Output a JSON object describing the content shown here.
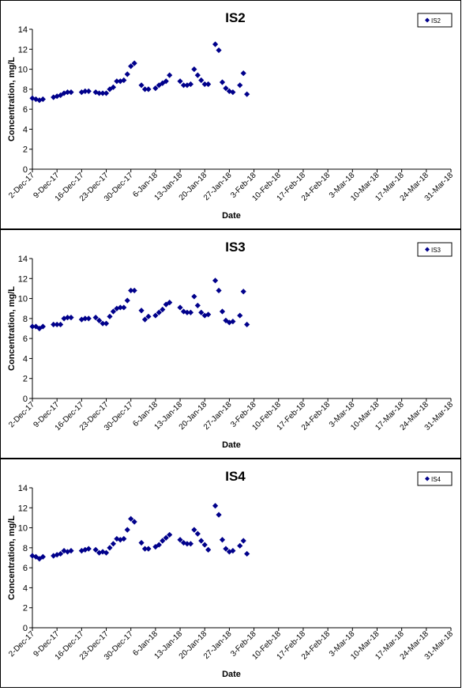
{
  "chart_data": [
    {
      "type": "scatter",
      "title": "IS2",
      "xlabel": "Date",
      "ylabel": "Concentration, mg/L",
      "ylim": [
        0,
        14
      ],
      "yticks": [
        "0",
        "2",
        "4",
        "6",
        "8",
        "10",
        "12",
        "14"
      ],
      "xlim": [
        "2017-12-02",
        "2018-03-31"
      ],
      "xtick_labels": [
        "2-Dec-17",
        "9-Dec-17",
        "16-Dec-17",
        "23-Dec-17",
        "30-Dec-17",
        "6-Jan-18",
        "13-Jan-18",
        "20-Jan-18",
        "27-Jan-18",
        "3-Feb-18",
        "10-Feb-18",
        "17-Feb-18",
        "24-Feb-18",
        "3-Mar-18",
        "10-Mar-18",
        "17-Mar-18",
        "24-Mar-18",
        "31-Mar-18"
      ],
      "grid": false,
      "legend_position": "top-right",
      "color": "#00008B",
      "marker": "diamond",
      "series": [
        {
          "name": "IS2",
          "points": [
            [
              "2017-12-02",
              7.1
            ],
            [
              "2017-12-03",
              7.0
            ],
            [
              "2017-12-04",
              6.9
            ],
            [
              "2017-12-05",
              7.0
            ],
            [
              "2017-12-08",
              7.2
            ],
            [
              "2017-12-09",
              7.3
            ],
            [
              "2017-12-10",
              7.4
            ],
            [
              "2017-12-11",
              7.6
            ],
            [
              "2017-12-12",
              7.7
            ],
            [
              "2017-12-13",
              7.7
            ],
            [
              "2017-12-16",
              7.7
            ],
            [
              "2017-12-17",
              7.8
            ],
            [
              "2017-12-18",
              7.8
            ],
            [
              "2017-12-20",
              7.7
            ],
            [
              "2017-12-21",
              7.6
            ],
            [
              "2017-12-22",
              7.6
            ],
            [
              "2017-12-23",
              7.6
            ],
            [
              "2017-12-24",
              8.0
            ],
            [
              "2017-12-25",
              8.2
            ],
            [
              "2017-12-26",
              8.8
            ],
            [
              "2017-12-27",
              8.8
            ],
            [
              "2017-12-28",
              8.9
            ],
            [
              "2017-12-29",
              9.5
            ],
            [
              "2017-12-30",
              10.3
            ],
            [
              "2017-12-31",
              10.6
            ],
            [
              "2018-01-02",
              8.4
            ],
            [
              "2018-01-03",
              8.0
            ],
            [
              "2018-01-04",
              8.0
            ],
            [
              "2018-01-06",
              8.1
            ],
            [
              "2018-01-07",
              8.4
            ],
            [
              "2018-01-08",
              8.6
            ],
            [
              "2018-01-09",
              8.8
            ],
            [
              "2018-01-10",
              9.4
            ],
            [
              "2018-01-13",
              8.8
            ],
            [
              "2018-01-14",
              8.4
            ],
            [
              "2018-01-15",
              8.4
            ],
            [
              "2018-01-16",
              8.5
            ],
            [
              "2018-01-17",
              10.0
            ],
            [
              "2018-01-18",
              9.4
            ],
            [
              "2018-01-19",
              8.9
            ],
            [
              "2018-01-20",
              8.5
            ],
            [
              "2018-01-21",
              8.5
            ],
            [
              "2018-01-23",
              12.5
            ],
            [
              "2018-01-24",
              11.9
            ],
            [
              "2018-01-25",
              8.7
            ],
            [
              "2018-01-26",
              8.1
            ],
            [
              "2018-01-27",
              7.8
            ],
            [
              "2018-01-28",
              7.7
            ],
            [
              "2018-01-30",
              8.4
            ],
            [
              "2018-01-31",
              9.6
            ],
            [
              "2018-02-01",
              7.5
            ]
          ]
        }
      ]
    },
    {
      "type": "scatter",
      "title": "IS3",
      "xlabel": "Date",
      "ylabel": "Concentration, mg/L",
      "ylim": [
        0,
        14
      ],
      "yticks": [
        "0",
        "2",
        "4",
        "6",
        "8",
        "10",
        "12",
        "14"
      ],
      "xlim": [
        "2017-12-02",
        "2018-03-31"
      ],
      "xtick_labels": [
        "2-Dec-17",
        "9-Dec-17",
        "16-Dec-17",
        "23-Dec-17",
        "30-Dec-17",
        "6-Jan-18",
        "13-Jan-18",
        "20-Jan-18",
        "27-Jan-18",
        "3-Feb-18",
        "10-Feb-18",
        "17-Feb-18",
        "24-Feb-18",
        "3-Mar-18",
        "10-Mar-18",
        "17-Mar-18",
        "24-Mar-18",
        "31-Mar-18"
      ],
      "grid": false,
      "legend_position": "top-right",
      "color": "#00008B",
      "marker": "diamond",
      "series": [
        {
          "name": "IS3",
          "points": [
            [
              "2017-12-02",
              7.2
            ],
            [
              "2017-12-03",
              7.2
            ],
            [
              "2017-12-04",
              7.0
            ],
            [
              "2017-12-05",
              7.2
            ],
            [
              "2017-12-08",
              7.4
            ],
            [
              "2017-12-09",
              7.4
            ],
            [
              "2017-12-10",
              7.4
            ],
            [
              "2017-12-11",
              8.0
            ],
            [
              "2017-12-12",
              8.1
            ],
            [
              "2017-12-13",
              8.1
            ],
            [
              "2017-12-16",
              7.9
            ],
            [
              "2017-12-17",
              8.0
            ],
            [
              "2017-12-18",
              8.0
            ],
            [
              "2017-12-20",
              8.1
            ],
            [
              "2017-12-21",
              7.8
            ],
            [
              "2017-12-22",
              7.5
            ],
            [
              "2017-12-23",
              7.5
            ],
            [
              "2017-12-24",
              8.2
            ],
            [
              "2017-12-25",
              8.7
            ],
            [
              "2017-12-26",
              9.0
            ],
            [
              "2017-12-27",
              9.1
            ],
            [
              "2017-12-28",
              9.1
            ],
            [
              "2017-12-29",
              9.8
            ],
            [
              "2017-12-30",
              10.8
            ],
            [
              "2017-12-31",
              10.8
            ],
            [
              "2018-01-02",
              8.8
            ],
            [
              "2018-01-03",
              7.9
            ],
            [
              "2018-01-04",
              8.2
            ],
            [
              "2018-01-06",
              8.3
            ],
            [
              "2018-01-07",
              8.6
            ],
            [
              "2018-01-08",
              8.9
            ],
            [
              "2018-01-09",
              9.4
            ],
            [
              "2018-01-10",
              9.6
            ],
            [
              "2018-01-13",
              9.1
            ],
            [
              "2018-01-14",
              8.7
            ],
            [
              "2018-01-15",
              8.6
            ],
            [
              "2018-01-16",
              8.6
            ],
            [
              "2018-01-17",
              10.2
            ],
            [
              "2018-01-18",
              9.3
            ],
            [
              "2018-01-19",
              8.6
            ],
            [
              "2018-01-20",
              8.3
            ],
            [
              "2018-01-21",
              8.4
            ],
            [
              "2018-01-23",
              11.8
            ],
            [
              "2018-01-24",
              10.8
            ],
            [
              "2018-01-25",
              8.7
            ],
            [
              "2018-01-26",
              7.8
            ],
            [
              "2018-01-27",
              7.6
            ],
            [
              "2018-01-28",
              7.7
            ],
            [
              "2018-01-30",
              8.3
            ],
            [
              "2018-01-31",
              10.7
            ],
            [
              "2018-02-01",
              7.4
            ]
          ]
        }
      ]
    },
    {
      "type": "scatter",
      "title": "IS4",
      "xlabel": "Date",
      "ylabel": "Concentration, mg/L",
      "ylim": [
        0,
        14
      ],
      "yticks": [
        "0",
        "2",
        "4",
        "6",
        "8",
        "10",
        "12",
        "14"
      ],
      "xlim": [
        "2017-12-02",
        "2018-03-31"
      ],
      "xtick_labels": [
        "2-Dec-17",
        "9-Dec-17",
        "16-Dec-17",
        "23-Dec-17",
        "30-Dec-17",
        "6-Jan-18",
        "13-Jan-18",
        "20-Jan-18",
        "27-Jan-18",
        "3-Feb-18",
        "10-Feb-18",
        "17-Feb-18",
        "24-Feb-18",
        "3-Mar-18",
        "10-Mar-18",
        "17-Mar-18",
        "24-Mar-18",
        "31-Mar-18"
      ],
      "grid": false,
      "legend_position": "top-right",
      "color": "#00008B",
      "marker": "diamond",
      "series": [
        {
          "name": "IS4",
          "points": [
            [
              "2017-12-02",
              7.2
            ],
            [
              "2017-12-03",
              7.1
            ],
            [
              "2017-12-04",
              6.9
            ],
            [
              "2017-12-05",
              7.1
            ],
            [
              "2017-12-08",
              7.2
            ],
            [
              "2017-12-09",
              7.3
            ],
            [
              "2017-12-10",
              7.4
            ],
            [
              "2017-12-11",
              7.7
            ],
            [
              "2017-12-12",
              7.6
            ],
            [
              "2017-12-13",
              7.7
            ],
            [
              "2017-12-16",
              7.7
            ],
            [
              "2017-12-17",
              7.8
            ],
            [
              "2017-12-18",
              7.9
            ],
            [
              "2017-12-20",
              7.8
            ],
            [
              "2017-12-21",
              7.5
            ],
            [
              "2017-12-22",
              7.6
            ],
            [
              "2017-12-23",
              7.5
            ],
            [
              "2017-12-24",
              8.0
            ],
            [
              "2017-12-25",
              8.4
            ],
            [
              "2017-12-26",
              8.9
            ],
            [
              "2017-12-27",
              8.8
            ],
            [
              "2017-12-28",
              8.9
            ],
            [
              "2017-12-29",
              9.8
            ],
            [
              "2017-12-30",
              10.9
            ],
            [
              "2017-12-31",
              10.6
            ],
            [
              "2018-01-02",
              8.5
            ],
            [
              "2018-01-03",
              7.9
            ],
            [
              "2018-01-04",
              7.9
            ],
            [
              "2018-01-06",
              8.1
            ],
            [
              "2018-01-07",
              8.3
            ],
            [
              "2018-01-08",
              8.7
            ],
            [
              "2018-01-09",
              9.0
            ],
            [
              "2018-01-10",
              9.3
            ],
            [
              "2018-01-13",
              8.8
            ],
            [
              "2018-01-14",
              8.5
            ],
            [
              "2018-01-15",
              8.4
            ],
            [
              "2018-01-16",
              8.4
            ],
            [
              "2018-01-17",
              9.8
            ],
            [
              "2018-01-18",
              9.4
            ],
            [
              "2018-01-19",
              8.7
            ],
            [
              "2018-01-20",
              8.3
            ],
            [
              "2018-01-21",
              7.8
            ],
            [
              "2018-01-23",
              12.2
            ],
            [
              "2018-01-24",
              11.3
            ],
            [
              "2018-01-25",
              8.8
            ],
            [
              "2018-01-26",
              7.9
            ],
            [
              "2018-01-27",
              7.6
            ],
            [
              "2018-01-28",
              7.7
            ],
            [
              "2018-01-30",
              8.2
            ],
            [
              "2018-01-31",
              8.7
            ],
            [
              "2018-02-01",
              7.4
            ]
          ]
        }
      ]
    }
  ]
}
